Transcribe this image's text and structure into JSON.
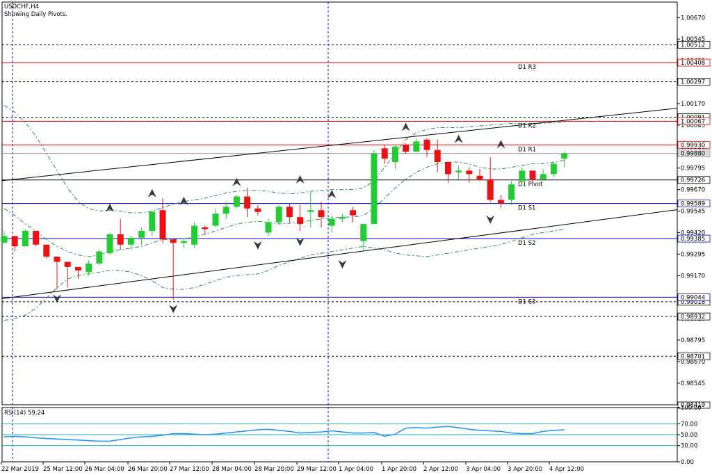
{
  "header": {
    "symbol": "USDCHF,H4",
    "subtitle": "Showing Daily Pivots."
  },
  "colors": {
    "bull": "#22cc33",
    "bear": "#ee1111",
    "pivot": "#000000",
    "resistance": "#e00000",
    "support": "#0000cc",
    "axis": "#000000",
    "grid": "#000000",
    "rsi": "#1e90ff",
    "rsi_level": "#20b2aa"
  },
  "chart_data": [
    {
      "type": "candlestick",
      "title": "USDCHF,H4",
      "subtitle": "Showing Daily Pivots.",
      "ylim": [
        0.98419,
        1.0076
      ],
      "y_ticks": [
        "1.00670",
        "1.00545",
        "1.00420",
        "1.00297",
        "1.00170",
        "1.00045",
        "0.99920",
        "0.99795",
        "0.99670",
        "0.99545",
        "0.99420",
        "0.99295",
        "0.99170",
        "0.99045",
        "0.98920",
        "0.98795",
        "0.98670",
        "0.98545"
      ],
      "x_ticks": [
        "22 Mar 2019",
        "25 Mar 12:00",
        "26 Mar 04:00",
        "26 Mar 20:00",
        "27 Mar 12:00",
        "28 Mar 04:00",
        "28 Mar 20:00",
        "29 Mar 12:00",
        "1 Apr 04:00",
        "1 Apr 20:00",
        "2 Apr 12:00",
        "3 Apr 04:00",
        "3 Apr 20:00",
        "4 Apr 12:00"
      ],
      "candles": [
        [
          0.9936,
          0.9943,
          0.9936,
          0.994
        ],
        [
          0.994,
          0.994,
          0.9931,
          0.9934
        ],
        [
          0.9934,
          0.9944,
          0.9934,
          0.9943
        ],
        [
          0.9943,
          0.9943,
          0.9934,
          0.9935
        ],
        [
          0.9935,
          0.9935,
          0.9927,
          0.9928
        ],
        [
          0.9928,
          0.9928,
          0.9909,
          0.9925
        ],
        [
          0.9925,
          0.9925,
          0.991,
          0.9922
        ],
        [
          0.9922,
          0.9922,
          0.9915,
          0.992
        ],
        [
          0.9919,
          0.9926,
          0.9917,
          0.9924
        ],
        [
          0.9924,
          0.9932,
          0.9923,
          0.9931
        ],
        [
          0.993,
          0.9942,
          0.9929,
          0.9941
        ],
        [
          0.9941,
          0.995,
          0.9932,
          0.9935
        ],
        [
          0.9935,
          0.994,
          0.9932,
          0.9939
        ],
        [
          0.9939,
          0.9945,
          0.9935,
          0.9943
        ],
        [
          0.9943,
          0.9955,
          0.994,
          0.9954
        ],
        [
          0.9955,
          0.9962,
          0.9936,
          0.9938
        ],
        [
          0.9938,
          0.9938,
          0.9903,
          0.9936
        ],
        [
          0.9936,
          0.9938,
          0.9933,
          0.9937
        ],
        [
          0.9935,
          0.9948,
          0.9933,
          0.9946
        ],
        [
          0.9945,
          0.9946,
          0.9941,
          0.9944
        ],
        [
          0.9946,
          0.9956,
          0.9945,
          0.9953
        ],
        [
          0.9953,
          0.996,
          0.995,
          0.9957
        ],
        [
          0.9957,
          0.9964,
          0.9956,
          0.9963
        ],
        [
          0.9963,
          0.9968,
          0.9951,
          0.9956
        ],
        [
          0.9956,
          0.9958,
          0.9952,
          0.9954
        ],
        [
          0.9942,
          0.995,
          0.994,
          0.9948
        ],
        [
          0.9948,
          0.9958,
          0.9947,
          0.9957
        ],
        [
          0.9957,
          0.9959,
          0.9948,
          0.9951
        ],
        [
          0.9951,
          0.9958,
          0.9943,
          0.9947
        ],
        [
          0.9954,
          0.9966,
          0.9945,
          0.9955
        ],
        [
          0.9955,
          0.996,
          0.9945,
          0.9951
        ],
        [
          0.9946,
          0.9952,
          0.9942,
          0.995
        ],
        [
          0.995,
          0.9953,
          0.9948,
          0.9951
        ],
        [
          0.9955,
          0.9957,
          0.9948,
          0.9952
        ],
        [
          0.9937,
          0.9947,
          0.9932,
          0.9947
        ],
        [
          0.9947,
          0.999,
          0.9947,
          0.9988
        ],
        [
          0.9991,
          0.9993,
          0.9982,
          0.9985
        ],
        [
          0.9983,
          0.9993,
          0.9979,
          0.9992
        ],
        [
          0.9993,
          0.9994,
          0.9988,
          0.9989
        ],
        [
          0.9989,
          0.9997,
          0.9989,
          0.9995
        ],
        [
          0.9996,
          0.9997,
          0.9986,
          0.999
        ],
        [
          0.999,
          0.9996,
          0.9977,
          0.9983
        ],
        [
          0.9983,
          0.9983,
          0.9971,
          0.9976
        ],
        [
          0.9977,
          0.9981,
          0.9973,
          0.9978
        ],
        [
          0.9978,
          0.998,
          0.9971,
          0.9976
        ],
        [
          0.9975,
          0.9979,
          0.9972,
          0.9973
        ],
        [
          0.9973,
          0.9986,
          0.996,
          0.9961
        ],
        [
          0.9961,
          0.9964,
          0.9956,
          0.9959
        ],
        [
          0.9961,
          0.9972,
          0.9958,
          0.997
        ],
        [
          0.9972,
          0.998,
          0.997,
          0.9978
        ],
        [
          0.9978,
          0.9978,
          0.9971,
          0.9973
        ],
        [
          0.9973,
          0.9979,
          0.9972,
          0.9976
        ],
        [
          0.9976,
          0.9983,
          0.9974,
          0.9982
        ],
        [
          0.9985,
          0.9989,
          0.998,
          0.9988
        ]
      ],
      "moving_averages": {
        "ma_upper": [
          1.0016,
          1.0012,
          1.0006,
          0.9998,
          0.9988,
          0.9978,
          0.9968,
          0.996,
          0.9956,
          0.99545,
          0.9955,
          0.99545,
          0.99535,
          0.99535,
          0.99545,
          0.99565,
          0.99585,
          0.996,
          0.9961,
          0.9962,
          0.99635,
          0.9965,
          0.9966,
          0.99665,
          0.99665,
          0.9966,
          0.9965,
          0.99645,
          0.9965,
          0.9966,
          0.99665,
          0.9967,
          0.9967,
          0.9967,
          0.9968,
          0.9972,
          0.998,
          0.9988,
          0.9996,
          1.0,
          1.0002,
          1.0003,
          1.0003,
          1.0003,
          1.00035,
          1.0004,
          1.00045,
          1.0005,
          1.00055,
          1.00055,
          1.00055,
          1.00055,
          1.0006,
          1.0006
        ],
        "ma_middle": [
          0.9956,
          0.9952,
          0.9947,
          0.9943,
          0.9938,
          0.9934,
          0.9931,
          0.9929,
          0.9928,
          0.9929,
          0.9931,
          0.9932,
          0.9933,
          0.9934,
          0.9936,
          0.9938,
          0.9938,
          0.99385,
          0.99395,
          0.9941,
          0.9943,
          0.9945,
          0.9947,
          0.9948,
          0.99485,
          0.9948,
          0.9947,
          0.99475,
          0.9948,
          0.9949,
          0.995,
          0.99505,
          0.9951,
          0.9951,
          0.9952,
          0.9956,
          0.9962,
          0.9968,
          0.9973,
          0.9977,
          0.998,
          0.9982,
          0.9983,
          0.9983,
          0.9982,
          0.998,
          0.9979,
          0.9979,
          0.998,
          0.9981,
          0.9982,
          0.9982,
          0.9983,
          0.9984
        ],
        "ma_lower": [
          0.9891,
          0.9892,
          0.9894,
          0.9898,
          0.9904,
          0.991,
          0.9915,
          0.9917,
          0.9918,
          0.9919,
          0.992,
          0.992,
          0.9919,
          0.9917,
          0.9914,
          0.991,
          0.9909,
          0.9909,
          0.991,
          0.9912,
          0.9914,
          0.9916,
          0.9917,
          0.99175,
          0.9918,
          0.992,
          0.9923,
          0.9925,
          0.9927,
          0.9929,
          0.993,
          0.9931,
          0.9932,
          0.9933,
          0.9934,
          0.9933,
          0.9932,
          0.993,
          0.9929,
          0.99285,
          0.9928,
          0.9929,
          0.993,
          0.9931,
          0.9932,
          0.9933,
          0.9934,
          0.9935,
          0.9937,
          0.9939,
          0.9941,
          0.9942,
          0.9943,
          0.9944
        ]
      },
      "fractals_up": [
        [
          10,
          0.9954
        ],
        [
          14,
          0.99625
        ],
        [
          17,
          0.9958
        ],
        [
          22,
          0.9969
        ],
        [
          28,
          0.99705
        ],
        [
          31,
          0.9962
        ],
        [
          38,
          1.0001
        ],
        [
          43,
          0.9994
        ],
        [
          47,
          0.9991
        ]
      ],
      "fractals_down": [
        [
          5,
          0.9906
        ],
        [
          16,
          0.99
        ],
        [
          24,
          0.9937
        ],
        [
          28,
          0.9939
        ],
        [
          32,
          0.9926
        ],
        [
          46,
          0.9952
        ]
      ],
      "pivot_levels": [
        {
          "name": "D1 R3",
          "value": 1.00408,
          "label": "1.00408"
        },
        {
          "name": "D1 R2",
          "value": 1.00067,
          "label": "1.00067"
        },
        {
          "name": "D1 R1",
          "value": 0.9993,
          "label": "0.99930"
        },
        {
          "name": "D1 Pivot",
          "value": 0.99726,
          "label": "0.99726"
        },
        {
          "name": "D1 S1",
          "value": 0.99589,
          "label": "0.99589"
        },
        {
          "name": "D1 S2",
          "value": 0.99385,
          "label": "0.99385"
        },
        {
          "name": "D1 S3",
          "value": 0.99044,
          "label": "0.99044"
        }
      ],
      "horizontal_lines": [
        {
          "value": 1.00512,
          "label": "1.00512"
        },
        {
          "value": 1.00297,
          "label": "1.00297"
        },
        {
          "value": 1.00091,
          "label": "1.00091"
        },
        {
          "value": 0.99018,
          "label": "0.99018"
        },
        {
          "value": 0.98932,
          "label": "0.98932"
        },
        {
          "value": 0.98701,
          "label": "0.98701"
        }
      ],
      "current_price": {
        "value": 0.9988,
        "label": "0.99880"
      },
      "bottom_marker": {
        "label": "0.98419"
      },
      "trend_lines": [
        {
          "x": [
            0.0,
            1.0
          ],
          "y": [
            0.99722,
            1.00143
          ]
        },
        {
          "x": [
            0.0,
            1.0
          ],
          "y": [
            0.99036,
            0.99553
          ]
        }
      ]
    },
    {
      "type": "line",
      "title": "RSI(14) 59.24",
      "ylim": [
        0,
        100
      ],
      "y_ticks": [
        "100.00",
        "70.00",
        "50.00",
        "30.00",
        "0.00"
      ],
      "levels": [
        70,
        50,
        30
      ],
      "series": [
        {
          "name": "RSI(14)",
          "values": [
            46,
            47,
            46,
            44,
            43,
            42,
            41,
            40,
            39,
            38,
            38,
            41,
            44,
            46,
            47,
            49,
            52,
            52,
            51,
            50,
            51,
            53,
            55,
            57,
            59,
            60,
            58,
            56,
            53,
            54,
            55,
            57,
            55,
            53,
            53,
            54,
            47,
            51,
            62,
            63,
            62,
            64,
            65,
            63,
            60,
            58,
            57,
            56,
            53,
            52,
            52,
            56,
            58,
            59
          ]
        }
      ]
    }
  ]
}
